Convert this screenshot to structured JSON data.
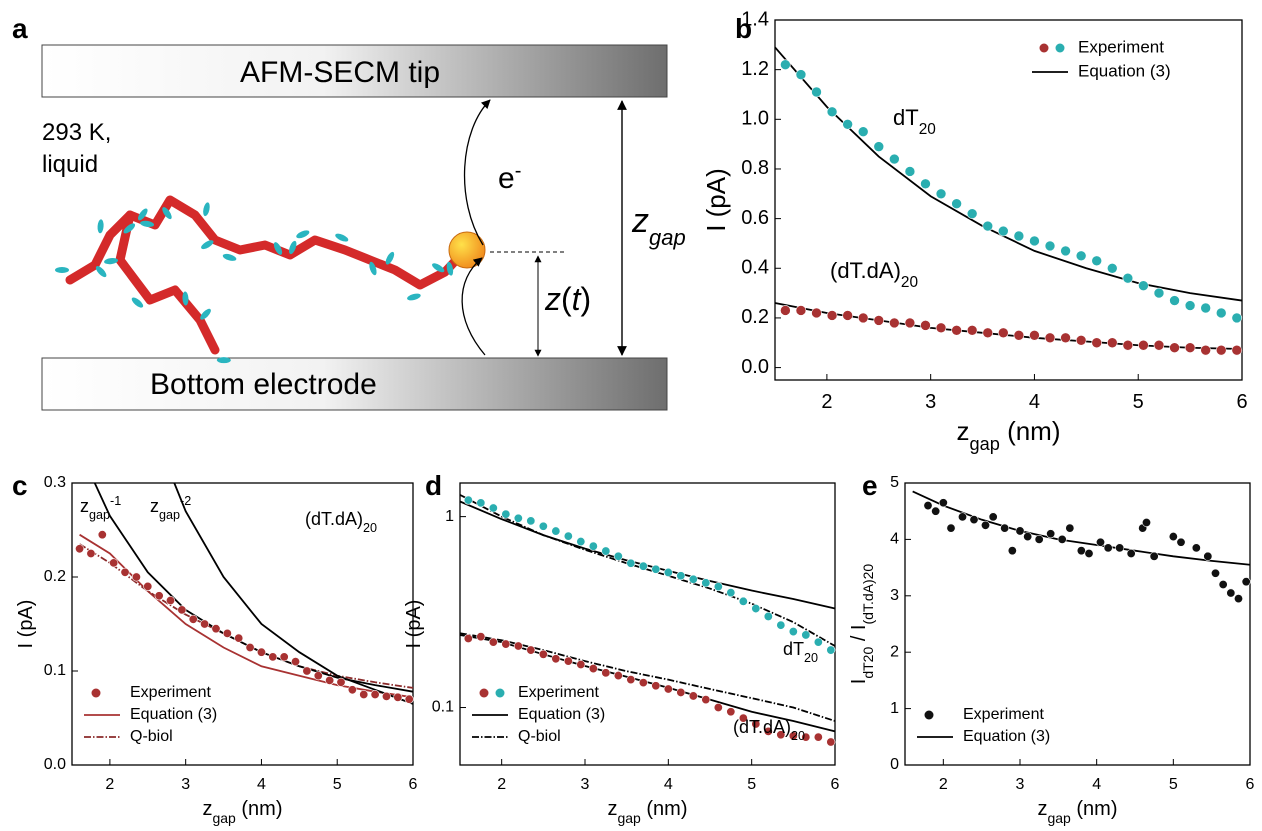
{
  "diagram": {
    "panel": "a",
    "tip": "AFM-SECM tip",
    "temperature": "293 K,",
    "phase": "liquid",
    "electron": [
      {
        "n": "e"
      },
      {
        "sup": "-"
      }
    ],
    "gap": [
      {
        "n": "z"
      },
      {
        "sub": "gap"
      }
    ],
    "height": [
      {
        "n": "z"
      },
      {
        "n": "("
      },
      {
        "n": "t"
      },
      {
        "n": ")"
      }
    ],
    "bottom": "Bottom electrode"
  },
  "chart_data": [
    {
      "panel": "b",
      "type": "line",
      "xlim": [
        1.5,
        6
      ],
      "ylim": [
        -0.05,
        1.4
      ],
      "xticks": [
        2,
        3,
        4,
        5,
        6
      ],
      "yticks": [
        {
          "value": 0,
          "label": "0.0"
        },
        0.2,
        0.4,
        0.6,
        0.8,
        {
          "value": 1,
          "label": "1.0"
        },
        1.2,
        1.4
      ],
      "xlabel": [
        {
          "n": "z"
        },
        {
          "sub": "gap"
        },
        {
          "n": " (nm)"
        }
      ],
      "ylabel": [
        {
          "n": "I (pA)"
        }
      ],
      "legend": "upper right",
      "annotations": [
        [
          {
            "n": "dT"
          },
          {
            "sub": "20"
          }
        ],
        [
          {
            "n": "(dT.dA)"
          },
          {
            "sub": "20"
          }
        ]
      ],
      "series": [
        {
          "name": "Experiment",
          "color": "#a83232",
          "mode": "markers",
          "x": [
            1.6,
            1.75,
            1.9,
            2.05,
            2.2,
            2.35,
            2.5,
            2.65,
            2.8,
            2.95,
            3.1,
            3.25,
            3.4,
            3.55,
            3.7,
            3.85,
            4.0,
            4.15,
            4.3,
            4.45,
            4.6,
            4.75,
            4.9,
            5.05,
            5.2,
            5.35,
            5.5,
            5.65,
            5.8,
            5.95
          ],
          "values": [
            0.23,
            0.23,
            0.22,
            0.21,
            0.21,
            0.2,
            0.19,
            0.18,
            0.18,
            0.17,
            0.16,
            0.15,
            0.15,
            0.14,
            0.14,
            0.13,
            0.13,
            0.12,
            0.12,
            0.11,
            0.1,
            0.1,
            0.09,
            0.09,
            0.09,
            0.08,
            0.08,
            0.07,
            0.07,
            0.07
          ]
        },
        {
          "name": "Experiment",
          "color": "#2aaeb0",
          "mode": "markers",
          "x": [
            1.6,
            1.75,
            1.9,
            2.05,
            2.2,
            2.35,
            2.5,
            2.65,
            2.8,
            2.95,
            3.1,
            3.25,
            3.4,
            3.55,
            3.7,
            3.85,
            4.0,
            4.15,
            4.3,
            4.45,
            4.6,
            4.75,
            4.9,
            5.05,
            5.2,
            5.35,
            5.5,
            5.65,
            5.8,
            5.95
          ],
          "values": [
            1.22,
            1.18,
            1.11,
            1.03,
            0.98,
            0.95,
            0.89,
            0.84,
            0.79,
            0.74,
            0.7,
            0.66,
            0.62,
            0.57,
            0.55,
            0.53,
            0.51,
            0.49,
            0.47,
            0.45,
            0.43,
            0.4,
            0.36,
            0.33,
            0.3,
            0.27,
            0.25,
            0.24,
            0.22,
            0.2
          ]
        },
        {
          "name": "Equation (3)",
          "color": "#000000",
          "mode": "solid",
          "x": [
            1.5,
            2,
            2.5,
            3,
            3.5,
            4,
            4.5,
            5,
            5.5,
            6
          ],
          "values": [
            1.29,
            1.05,
            0.85,
            0.69,
            0.57,
            0.47,
            0.4,
            0.34,
            0.3,
            0.27
          ]
        },
        {
          "name": "Equation (3)",
          "color": "#000000",
          "mode": "solid",
          "x": [
            1.5,
            2,
            2.5,
            3,
            3.5,
            4,
            4.5,
            5,
            5.5,
            6
          ],
          "values": [
            0.26,
            0.22,
            0.19,
            0.16,
            0.14,
            0.12,
            0.105,
            0.09,
            0.08,
            0.075
          ]
        }
      ]
    },
    {
      "panel": "c",
      "type": "line",
      "xlim": [
        1.5,
        6
      ],
      "ylim": [
        0,
        0.3
      ],
      "xticks": [
        2,
        3,
        4,
        5,
        6
      ],
      "yticks": [
        {
          "value": 0,
          "label": "0.0"
        },
        0.1,
        0.2,
        0.3
      ],
      "xlabel": [
        {
          "n": "z"
        },
        {
          "sub": "gap"
        },
        {
          "n": " (nm)"
        }
      ],
      "ylabel": [
        {
          "n": "I (pA)"
        }
      ],
      "legend": "lower left",
      "annotations": [
        [
          {
            "n": "z"
          },
          {
            "sub": "gap"
          },
          {
            "sup": "-1"
          }
        ],
        [
          {
            "n": "z"
          },
          {
            "sub": "gap"
          },
          {
            "sup": "-2"
          }
        ],
        [
          {
            "n": "(dT.dA)"
          },
          {
            "sub": "20"
          }
        ]
      ],
      "series": [
        {
          "name": "Experiment",
          "color": "#a83232",
          "mode": "markers",
          "x": [
            1.6,
            1.75,
            1.9,
            2.05,
            2.2,
            2.35,
            2.5,
            2.65,
            2.8,
            2.95,
            3.1,
            3.25,
            3.4,
            3.55,
            3.7,
            3.85,
            4.0,
            4.15,
            4.3,
            4.45,
            4.6,
            4.75,
            4.9,
            5.05,
            5.2,
            5.35,
            5.5,
            5.65,
            5.8,
            5.95
          ],
          "values": [
            0.23,
            0.225,
            0.245,
            0.215,
            0.205,
            0.2,
            0.19,
            0.18,
            0.175,
            0.165,
            0.155,
            0.15,
            0.145,
            0.14,
            0.135,
            0.125,
            0.12,
            0.115,
            0.115,
            0.11,
            0.1,
            0.095,
            0.09,
            0.088,
            0.08,
            0.075,
            0.075,
            0.073,
            0.072,
            0.07
          ]
        },
        {
          "name": "Equation (3)",
          "color": "#a83232",
          "mode": "solid",
          "x": [
            1.6,
            2,
            2.5,
            3,
            3.5,
            4,
            4.5,
            5,
            5.5,
            6
          ],
          "values": [
            0.245,
            0.225,
            0.185,
            0.15,
            0.125,
            0.105,
            0.095,
            0.085,
            0.078,
            0.072
          ]
        },
        {
          "name": "Q-biol",
          "color": "#8b2a2a",
          "mode": "dashdot",
          "x": [
            1.6,
            2,
            2.5,
            3,
            3.5,
            4,
            4.5,
            5,
            5.5,
            6
          ],
          "values": [
            0.235,
            0.215,
            0.185,
            0.16,
            0.14,
            0.12,
            0.105,
            0.095,
            0.088,
            0.082
          ]
        },
        {
          "color": "#000000",
          "mode": "solid",
          "x": [
            1.8,
            2,
            2.5,
            3,
            3.5,
            4,
            4.5,
            5,
            5.5,
            6
          ],
          "values": [
            0.3,
            0.265,
            0.205,
            0.165,
            0.14,
            0.12,
            0.105,
            0.093,
            0.085,
            0.078
          ]
        },
        {
          "color": "#000000",
          "mode": "solid",
          "x": [
            2.85,
            3,
            3.5,
            4,
            4.5,
            5,
            5.5,
            6
          ],
          "values": [
            0.3,
            0.27,
            0.2,
            0.15,
            0.12,
            0.095,
            0.08,
            0.065
          ]
        }
      ]
    },
    {
      "panel": "d",
      "type": "line",
      "yscale": "log",
      "xlim": [
        1.5,
        6
      ],
      "ylim": [
        0.05,
        1.5
      ],
      "xticks": [
        2,
        3,
        4,
        5,
        6
      ],
      "yticks": [
        0.1,
        1
      ],
      "xlabel": [
        {
          "n": "z"
        },
        {
          "sub": "gap"
        },
        {
          "n": " (nm)"
        }
      ],
      "ylabel": [
        {
          "n": "I (pA)"
        }
      ],
      "legend": "lower left",
      "annotations": [
        [
          {
            "n": "dT"
          },
          {
            "sub": "20"
          }
        ],
        [
          {
            "n": "(dT.dA)"
          },
          {
            "sub": "20"
          }
        ]
      ],
      "series": [
        {
          "name": "Experiment",
          "color": "#a83232",
          "mode": "markers",
          "x": [
            1.6,
            1.75,
            1.9,
            2.05,
            2.2,
            2.35,
            2.5,
            2.65,
            2.8,
            2.95,
            3.1,
            3.25,
            3.4,
            3.55,
            3.7,
            3.85,
            4.0,
            4.15,
            4.3,
            4.45,
            4.6,
            4.75,
            4.9,
            5.05,
            5.2,
            5.35,
            5.5,
            5.65,
            5.8,
            5.95
          ],
          "values": [
            0.23,
            0.235,
            0.22,
            0.215,
            0.21,
            0.2,
            0.19,
            0.18,
            0.175,
            0.168,
            0.16,
            0.152,
            0.147,
            0.14,
            0.135,
            0.13,
            0.125,
            0.12,
            0.115,
            0.11,
            0.1,
            0.095,
            0.088,
            0.082,
            0.075,
            0.072,
            0.071,
            0.07,
            0.07,
            0.066
          ]
        },
        {
          "name": "Experiment",
          "color": "#2aaeb0",
          "mode": "markers",
          "x": [
            1.6,
            1.75,
            1.9,
            2.05,
            2.2,
            2.35,
            2.5,
            2.65,
            2.8,
            2.95,
            3.1,
            3.25,
            3.4,
            3.55,
            3.7,
            3.85,
            4.0,
            4.15,
            4.3,
            4.45,
            4.6,
            4.75,
            4.9,
            5.05,
            5.2,
            5.35,
            5.5,
            5.65,
            5.8,
            5.95
          ],
          "values": [
            1.22,
            1.18,
            1.11,
            1.03,
            0.98,
            0.95,
            0.89,
            0.84,
            0.79,
            0.74,
            0.7,
            0.66,
            0.62,
            0.57,
            0.55,
            0.53,
            0.51,
            0.49,
            0.47,
            0.45,
            0.43,
            0.4,
            0.36,
            0.33,
            0.3,
            0.27,
            0.25,
            0.24,
            0.22,
            0.2
          ]
        },
        {
          "name": "Equation (3)",
          "color": "#000000",
          "mode": "solid",
          "x": [
            1.5,
            2,
            2.5,
            3,
            3.5,
            4,
            4.5,
            5,
            5.5,
            6
          ],
          "values": [
            1.2,
            0.97,
            0.8,
            0.68,
            0.59,
            0.52,
            0.46,
            0.41,
            0.37,
            0.33
          ]
        },
        {
          "name": "Equation (3)",
          "color": "#000000",
          "mode": "solid",
          "x": [
            1.5,
            2,
            2.5,
            3,
            3.5,
            4,
            4.5,
            5,
            5.5,
            6
          ],
          "values": [
            0.24,
            0.22,
            0.19,
            0.165,
            0.145,
            0.127,
            0.11,
            0.095,
            0.085,
            0.075
          ]
        },
        {
          "name": "Q-biol",
          "color": "#000000",
          "mode": "dashdot",
          "x": [
            1.5,
            2,
            2.5,
            3,
            3.5,
            4,
            4.5,
            5,
            5.5,
            6
          ],
          "values": [
            1.3,
            1.0,
            0.8,
            0.67,
            0.57,
            0.49,
            0.42,
            0.35,
            0.28,
            0.21
          ]
        },
        {
          "name": "Q-biol",
          "color": "#000000",
          "mode": "dashdot",
          "x": [
            1.5,
            2,
            2.5,
            3,
            3.5,
            4,
            4.5,
            5,
            5.5,
            6
          ],
          "values": [
            0.245,
            0.225,
            0.2,
            0.175,
            0.155,
            0.14,
            0.125,
            0.112,
            0.1,
            0.085
          ]
        }
      ]
    },
    {
      "panel": "e",
      "type": "line",
      "xlim": [
        1.5,
        6
      ],
      "ylim": [
        0,
        5
      ],
      "xticks": [
        2,
        3,
        4,
        5,
        6
      ],
      "yticks": [
        0,
        1,
        2,
        3,
        4,
        5
      ],
      "xlabel": [
        {
          "n": "z"
        },
        {
          "sub": "gap"
        },
        {
          "n": " (nm)"
        }
      ],
      "ylabel": [
        {
          "n": "I"
        },
        {
          "sub": "dT20"
        },
        {
          "n": " / I"
        },
        {
          "sub": "(dT.dA)20"
        }
      ],
      "legend": "lower left",
      "series": [
        {
          "name": "Experiment",
          "color": "#111111",
          "mode": "markers",
          "x": [
            1.8,
            1.9,
            2.0,
            2.1,
            2.25,
            2.4,
            2.55,
            2.65,
            2.8,
            2.9,
            3.0,
            3.1,
            3.25,
            3.4,
            3.55,
            3.65,
            3.8,
            3.9,
            4.05,
            4.15,
            4.3,
            4.45,
            4.6,
            4.65,
            4.75,
            5.0,
            5.1,
            5.3,
            5.45,
            5.55,
            5.65,
            5.75,
            5.85,
            5.95
          ],
          "values": [
            4.6,
            4.5,
            4.65,
            4.2,
            4.4,
            4.35,
            4.25,
            4.4,
            4.2,
            3.8,
            4.15,
            4.05,
            4.0,
            4.1,
            4.0,
            4.2,
            3.8,
            3.75,
            3.95,
            3.85,
            3.85,
            3.75,
            4.2,
            4.3,
            3.7,
            4.05,
            3.95,
            3.85,
            3.7,
            3.4,
            3.2,
            3.05,
            2.95,
            3.25
          ]
        },
        {
          "name": "Equation (3)",
          "color": "#000000",
          "mode": "solid",
          "x": [
            1.6,
            2,
            2.5,
            3,
            3.5,
            4,
            4.5,
            5,
            5.5,
            6
          ],
          "values": [
            4.85,
            4.6,
            4.35,
            4.15,
            4.0,
            3.9,
            3.8,
            3.7,
            3.62,
            3.55
          ]
        }
      ]
    }
  ]
}
